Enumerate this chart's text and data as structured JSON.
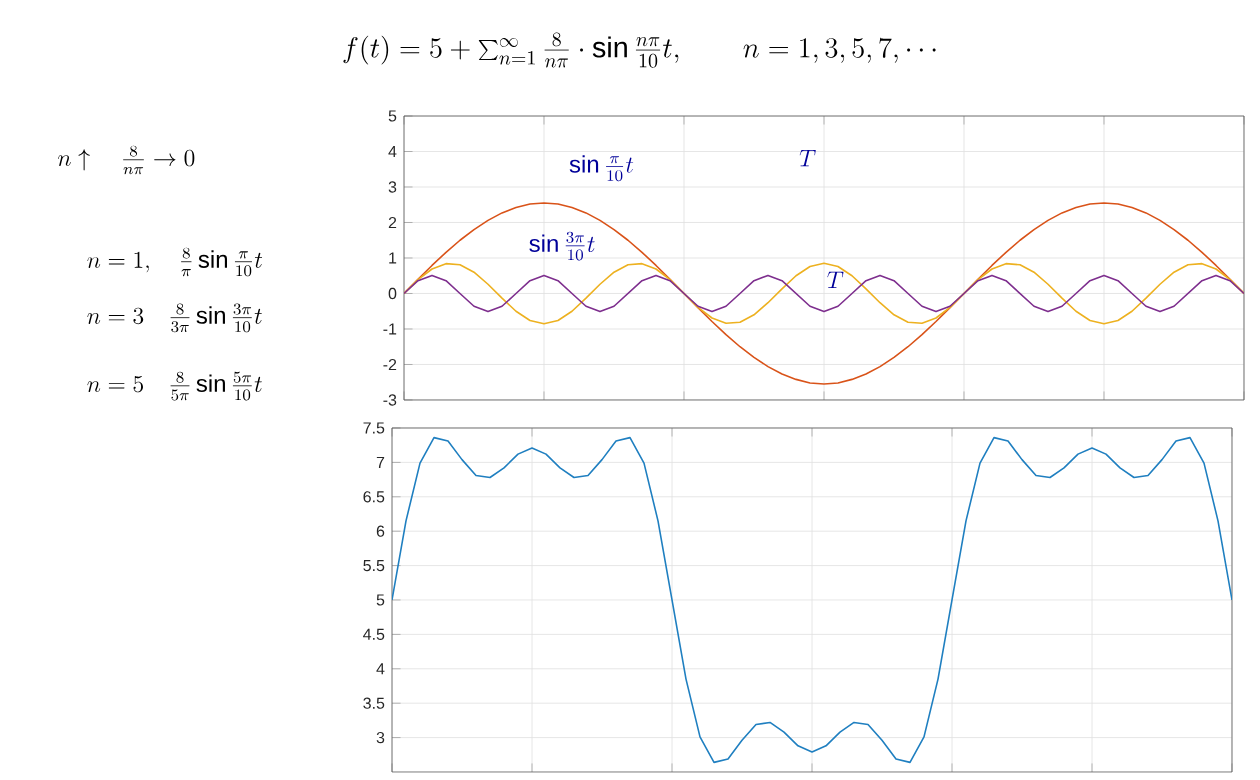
{
  "chart_data": [
    {
      "type": "line",
      "title": "f(t) = 5 + \\sum_{n=1}^{\\infty} \\frac{8}{n\\pi} \\cdot \\sin \\frac{n\\pi}{10} t, \\qquad n = 1, 3, 5, 7, \\cdots",
      "categories": [
        null,
        null,
        null,
        null,
        null,
        null,
        null,
        null,
        null,
        null,
        null,
        null,
        null,
        null,
        null,
        null,
        null,
        null,
        null,
        null,
        null,
        null,
        null,
        null,
        null,
        null,
        null,
        null,
        null,
        null,
        null,
        null,
        null,
        null,
        null,
        null,
        null,
        null,
        null,
        null,
        null,
        null,
        null,
        null,
        null,
        null,
        null,
        null,
        null,
        null,
        null,
        null,
        null,
        null,
        null,
        null,
        null,
        null,
        null,
        null,
        null
      ],
      "series": [
        {
          "color": "#d95319",
          "values": [
            0,
            0.4,
            0.79,
            1.16,
            1.5,
            1.8,
            2.06,
            2.27,
            2.42,
            2.52,
            2.55,
            2.52,
            2.42,
            2.27,
            2.06,
            1.8,
            1.5,
            1.16,
            0.79,
            0.4,
            0,
            -0.4,
            -0.79,
            -1.16,
            -1.5,
            -1.8,
            -2.06,
            -2.27,
            -2.42,
            -2.52,
            -2.55,
            -2.52,
            -2.42,
            -2.27,
            -2.06,
            -1.8,
            -1.5,
            -1.16,
            -0.79,
            -0.4,
            0,
            0.4,
            0.79,
            1.16,
            1.5,
            1.8,
            2.06,
            2.27,
            2.42,
            2.52,
            2.55,
            2.52,
            2.42,
            2.27,
            2.06,
            1.8,
            1.5,
            1.16,
            0.79,
            0.4,
            0
          ]
        },
        {
          "color": "#edb120",
          "values": [
            0,
            0.39,
            0.69,
            0.84,
            0.81,
            0.6,
            0.26,
            -0.13,
            -0.5,
            -0.76,
            -0.85,
            -0.76,
            -0.5,
            -0.13,
            0.26,
            0.6,
            0.81,
            0.84,
            0.69,
            0.39,
            0,
            -0.39,
            -0.69,
            -0.84,
            -0.81,
            -0.6,
            -0.26,
            0.13,
            0.5,
            0.76,
            0.85,
            0.76,
            0.5,
            0.13,
            -0.26,
            -0.6,
            -0.81,
            -0.84,
            -0.69,
            -0.39,
            0,
            0.39,
            0.69,
            0.84,
            0.81,
            0.6,
            0.26,
            -0.13,
            -0.5,
            -0.76,
            -0.85,
            -0.76,
            -0.5,
            -0.13,
            0.26,
            0.6,
            0.81,
            0.84,
            0.69,
            0.39,
            0
          ]
        },
        {
          "color": "#7e2f8e",
          "values": [
            0,
            0.36,
            0.51,
            0.36,
            0,
            -0.36,
            -0.51,
            -0.36,
            0,
            0.36,
            0.51,
            0.36,
            0,
            -0.36,
            -0.51,
            -0.36,
            0,
            0.36,
            0.51,
            0.36,
            0,
            -0.36,
            -0.51,
            -0.36,
            0,
            0.36,
            0.51,
            0.36,
            0,
            -0.36,
            -0.51,
            -0.36,
            0,
            0.36,
            0.51,
            0.36,
            0,
            -0.36,
            -0.51,
            -0.36,
            0,
            0.36,
            0.51,
            0.36,
            0,
            -0.36,
            -0.51,
            -0.36,
            0,
            0.36,
            0.51,
            0.36,
            0,
            -0.36,
            -0.51,
            -0.36,
            0,
            0.36,
            0.51,
            0.36,
            0
          ]
        }
      ],
      "ylim": [
        -3,
        5
      ],
      "yticks": [
        -3,
        -2,
        -1,
        0,
        1,
        2,
        3,
        4,
        5
      ],
      "tick_labels": "y",
      "grid": true,
      "annotations": [
        "n\\uparrow \\quad \\frac{8}{n\\pi} \\to 0",
        "n=1, \\quad \\frac{8}{\\pi} \\sin\\frac{\\pi}{10}t",
        "n=3 \\quad \\frac{8}{3\\pi} \\sin\\frac{3\\pi}{10}t",
        "n=5 \\quad \\frac{8}{5\\pi} \\sin\\frac{5\\pi}{10}t",
        "\\sin\\frac{\\pi}{10}t",
        "\\sin\\frac{3\\pi}{10}t",
        "T",
        "T"
      ]
    },
    {
      "type": "line",
      "categories": [
        null,
        null,
        null,
        null,
        null,
        null,
        null,
        null,
        null,
        null,
        null,
        null,
        null,
        null,
        null,
        null,
        null,
        null,
        null,
        null,
        null,
        null,
        null,
        null,
        null,
        null,
        null,
        null,
        null,
        null,
        null,
        null,
        null,
        null,
        null,
        null,
        null,
        null,
        null,
        null,
        null,
        null,
        null,
        null,
        null,
        null,
        null,
        null,
        null,
        null,
        null,
        null,
        null,
        null,
        null,
        null,
        null,
        null,
        null,
        null,
        null
      ],
      "series": [
        {
          "color": "#1f7fc0",
          "values": [
            5,
            6.15,
            6.99,
            7.36,
            7.31,
            7.04,
            6.81,
            6.78,
            6.92,
            7.12,
            7.21,
            7.12,
            6.92,
            6.78,
            6.81,
            7.04,
            7.31,
            7.36,
            6.99,
            6.15,
            5,
            3.85,
            3.01,
            2.64,
            2.69,
            2.96,
            3.19,
            3.22,
            3.08,
            2.88,
            2.79,
            2.88,
            3.08,
            3.22,
            3.19,
            2.96,
            2.69,
            2.64,
            3.01,
            3.85,
            5,
            6.15,
            6.99,
            7.36,
            7.31,
            7.04,
            6.81,
            6.78,
            6.92,
            7.12,
            7.21,
            7.12,
            6.92,
            6.78,
            6.81,
            7.04,
            7.31,
            7.36,
            6.99,
            6.15,
            5
          ]
        }
      ],
      "ylim": [
        2.5,
        7.5
      ],
      "yticks": [
        3,
        3.5,
        4,
        4.5,
        5,
        5.5,
        6,
        6.5,
        7,
        7.5
      ],
      "tick_labels": "y",
      "grid": true
    }
  ]
}
